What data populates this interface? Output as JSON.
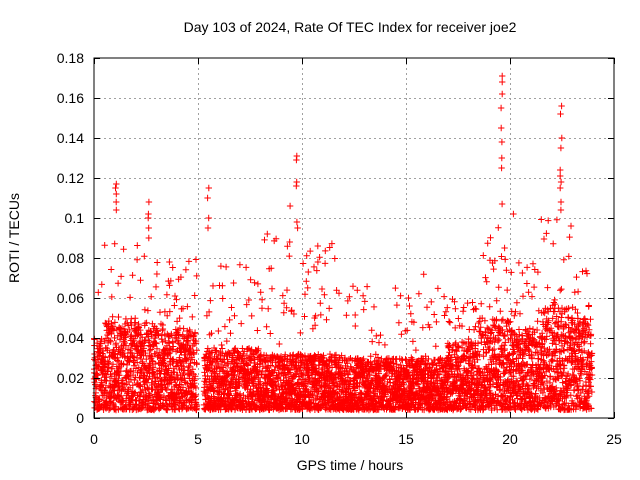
{
  "chart_data": {
    "type": "scatter",
    "title": "Day 103 of 2024, Rate Of TEC Index for receiver joe2",
    "xlabel": "GPS time / hours",
    "ylabel": "ROTI / TECUs",
    "xlim": [
      0,
      25
    ],
    "ylim": [
      0,
      0.18
    ],
    "x_ticks": [
      0,
      5,
      10,
      15,
      20,
      25
    ],
    "y_ticks": [
      0,
      0.02,
      0.04,
      0.06,
      0.08,
      0.1,
      0.12,
      0.14,
      0.16,
      0.18
    ],
    "x_tick_labels": [
      "0",
      "5",
      "10",
      "15",
      "20",
      "25"
    ],
    "y_tick_labels": [
      "0",
      "0.02",
      "0.04",
      "0.06",
      "0.08",
      "0.1",
      "0.12",
      "0.14",
      "0.16",
      "0.18"
    ],
    "grid": true,
    "marker": "+",
    "color": "#ff0000",
    "data_gap_hours": [
      4.95,
      5.3
    ],
    "envelope": [
      {
        "t_start": 0.0,
        "t_end": 0.5,
        "base_max": 0.04,
        "peak": 0.07
      },
      {
        "t_start": 0.5,
        "t_end": 1.0,
        "base_max": 0.05,
        "peak": 0.09
      },
      {
        "t_start": 1.0,
        "t_end": 2.5,
        "base_max": 0.048,
        "peak": 0.088
      },
      {
        "t_start": 2.5,
        "t_end": 4.95,
        "base_max": 0.045,
        "peak": 0.08
      },
      {
        "t_start": 5.3,
        "t_end": 8.0,
        "base_max": 0.035,
        "peak": 0.08
      },
      {
        "t_start": 8.0,
        "t_end": 12.0,
        "base_max": 0.032,
        "peak": 0.09
      },
      {
        "t_start": 12.0,
        "t_end": 17.0,
        "base_max": 0.03,
        "peak": 0.072
      },
      {
        "t_start": 17.0,
        "t_end": 18.5,
        "base_max": 0.038,
        "peak": 0.062
      },
      {
        "t_start": 18.5,
        "t_end": 20.0,
        "base_max": 0.05,
        "peak": 0.1
      },
      {
        "t_start": 20.0,
        "t_end": 21.5,
        "base_max": 0.045,
        "peak": 0.082
      },
      {
        "t_start": 21.5,
        "t_end": 23.0,
        "base_max": 0.055,
        "peak": 0.1
      },
      {
        "t_start": 23.0,
        "t_end": 23.95,
        "base_max": 0.05,
        "peak": 0.075
      }
    ],
    "spikes": [
      {
        "t": 1.05,
        "values": [
          0.117,
          0.115,
          0.112,
          0.108,
          0.104
        ]
      },
      {
        "t": 2.6,
        "values": [
          0.108,
          0.102,
          0.1,
          0.095,
          0.09
        ]
      },
      {
        "t": 3.6,
        "values": [
          0.078
        ]
      },
      {
        "t": 5.5,
        "values": [
          0.115,
          0.11,
          0.1,
          0.095
        ]
      },
      {
        "t": 8.3,
        "values": [
          0.092
        ]
      },
      {
        "t": 9.4,
        "values": [
          0.106,
          0.088
        ]
      },
      {
        "t": 9.75,
        "values": [
          0.131,
          0.129,
          0.118,
          0.116,
          0.098,
          0.095
        ]
      },
      {
        "t": 10.8,
        "values": [
          0.086,
          0.078
        ]
      },
      {
        "t": 19.6,
        "values": [
          0.171,
          0.168,
          0.162,
          0.155,
          0.145,
          0.138,
          0.13,
          0.125,
          0.107
        ]
      },
      {
        "t": 20.2,
        "values": [
          0.102
        ]
      },
      {
        "t": 22.45,
        "values": [
          0.156,
          0.152,
          0.14,
          0.135,
          0.124,
          0.121,
          0.118,
          0.115,
          0.108,
          0.104
        ]
      }
    ]
  }
}
